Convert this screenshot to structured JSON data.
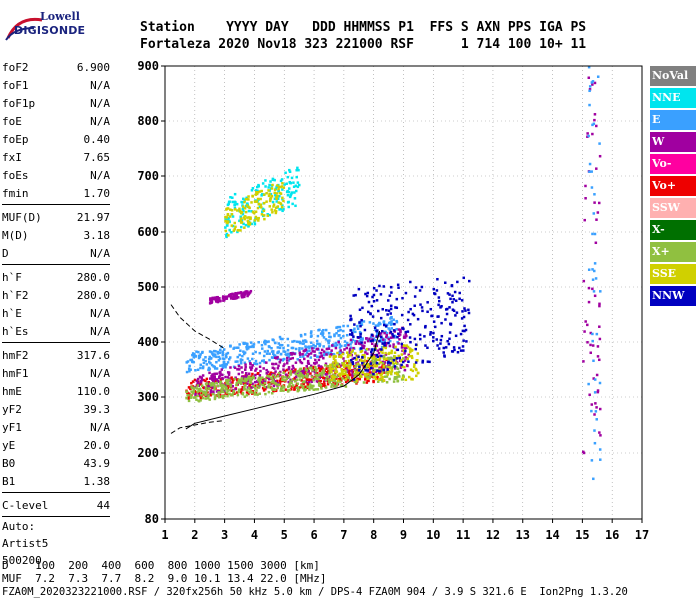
{
  "logo": {
    "line1": "Lowell",
    "line2": "DIGISONDE"
  },
  "header": {
    "labels": "Station    YYYY DAY   DDD HHMMSS P1  FFS S AXN PPS IGA PS",
    "values": "Fortaleza 2020 Nov18 323 221000 RSF      1 714 100 10+ 11"
  },
  "params": {
    "group1": [
      {
        "name": "foF2",
        "value": "6.900"
      },
      {
        "name": "foF1",
        "value": "N/A"
      },
      {
        "name": "foF1p",
        "value": "N/A"
      },
      {
        "name": "foE",
        "value": "N/A"
      },
      {
        "name": "foEp",
        "value": "0.40"
      },
      {
        "name": "fxI",
        "value": "7.65"
      },
      {
        "name": "foEs",
        "value": "N/A"
      },
      {
        "name": "fmin",
        "value": "1.70"
      }
    ],
    "group2": [
      {
        "name": "MUF(D)",
        "value": "21.97"
      },
      {
        "name": "M(D)",
        "value": "3.18"
      },
      {
        "name": "D",
        "value": "N/A"
      }
    ],
    "group3": [
      {
        "name": "h`F",
        "value": "280.0"
      },
      {
        "name": "h`F2",
        "value": "280.0"
      },
      {
        "name": "h`E",
        "value": "N/A"
      },
      {
        "name": "h`Es",
        "value": "N/A"
      }
    ],
    "group4": [
      {
        "name": "hmF2",
        "value": "317.6"
      },
      {
        "name": "hmF1",
        "value": "N/A"
      },
      {
        "name": "hmE",
        "value": "110.0"
      },
      {
        "name": "yF2",
        "value": "39.3"
      },
      {
        "name": "yF1",
        "value": "N/A"
      },
      {
        "name": "yE",
        "value": "20.0"
      },
      {
        "name": "B0",
        "value": "43.9"
      },
      {
        "name": "B1",
        "value": "1.38"
      }
    ],
    "clevel": {
      "name": "C-level",
      "value": "44"
    },
    "auto": [
      "Auto:",
      "Artist5",
      "500200"
    ]
  },
  "legend": [
    {
      "label": "NoVal",
      "color": "#808080"
    },
    {
      "label": "NNE",
      "color": "#00e5ee"
    },
    {
      "label": "E",
      "color": "#3aa0ff"
    },
    {
      "label": "W",
      "color": "#a000a0"
    },
    {
      "label": "Vo-",
      "color": "#ff00a0"
    },
    {
      "label": "Vo+",
      "color": "#ee0000"
    },
    {
      "label": "SSW",
      "color": "#ffb0b0"
    },
    {
      "label": "X-",
      "color": "#007000"
    },
    {
      "label": "X+",
      "color": "#90c040"
    },
    {
      "label": "SSE",
      "color": "#d0d000"
    },
    {
      "label": "NNW",
      "color": "#0000c0"
    }
  ],
  "footer": {
    "line1": "D    100  200  400  600  800 1000 1500 3000 [km]",
    "line2": "MUF  7.2  7.3  7.7  8.2  9.0 10.1 13.4 22.0 [MHz]",
    "line3": "FZA0M_2020323221000.RSF / 320fx256h 50 kHz 5.0 km / DPS-4 FZA0M 904 / 3.9 S 321.6 E  Ion2Png 1.3.20"
  },
  "chart_data": {
    "type": "scatter",
    "title": "",
    "xlabel": "",
    "ylabel": "",
    "xlim": [
      1,
      17
    ],
    "ylim": [
      80,
      900
    ],
    "x_ticks": [
      1,
      2,
      3,
      4,
      5,
      6,
      7,
      8,
      9,
      10,
      11,
      12,
      13,
      14,
      15,
      16,
      17
    ],
    "y_ticks": [
      80,
      200,
      300,
      400,
      500,
      600,
      700,
      800,
      900
    ],
    "grid": "dotted",
    "legend_position": "right",
    "clusters": [
      {
        "name": "Vo+",
        "x_range": [
          1.7,
          8.5
        ],
        "y_start": [
          295,
          330
        ],
        "y_end": [
          330,
          370
        ]
      },
      {
        "name": "E",
        "x_range": [
          1.7,
          8.8
        ],
        "y_start": [
          345,
          380
        ],
        "y_end": [
          390,
          450
        ]
      },
      {
        "name": "W",
        "x_range": [
          2.0,
          9.2
        ],
        "y_start": [
          300,
          340
        ],
        "y_end": [
          350,
          430
        ]
      },
      {
        "name": "X+",
        "x_range": [
          1.7,
          9.0
        ],
        "y_start": [
          290,
          320
        ],
        "y_end": [
          330,
          380
        ]
      },
      {
        "name": "SSE",
        "x_range": [
          6.5,
          9.5
        ],
        "y_start": [
          330,
          380
        ],
        "y_end": [
          330,
          400
        ]
      },
      {
        "name": "NNW",
        "x_range": [
          7.2,
          11.2
        ],
        "y_start": [
          330,
          500
        ],
        "y_end": [
          380,
          520
        ]
      },
      {
        "name": "NNE",
        "x_range": [
          3.0,
          5.5
        ],
        "y_start": [
          590,
          660
        ],
        "y_end": [
          650,
          720
        ]
      },
      {
        "name": "SSE",
        "x_range": [
          3.0,
          5.0
        ],
        "y_start": [
          590,
          640
        ],
        "y_end": [
          640,
          700
        ]
      },
      {
        "name": "W",
        "x_range": [
          2.5,
          3.9
        ],
        "y_start": [
          470,
          480
        ],
        "y_end": [
          485,
          495
        ]
      },
      {
        "name": "W",
        "x_range": [
          15.0,
          15.6
        ],
        "y_start": [
          200,
          880
        ],
        "y_end": [
          200,
          880
        ]
      },
      {
        "name": "E",
        "x_range": [
          15.2,
          15.6
        ],
        "y_start": [
          150,
          900
        ],
        "y_end": [
          150,
          900
        ]
      }
    ],
    "curves": [
      {
        "name": "virtual-height",
        "style": "solid",
        "x": [
          1.7,
          2,
          3,
          4,
          5,
          6,
          7,
          7.5,
          8.0,
          8.2
        ],
        "y": [
          243,
          253,
          266,
          279,
          292,
          305,
          320,
          340,
          380,
          420
        ]
      },
      {
        "name": "profile-upper",
        "style": "dashed",
        "x": [
          1.2,
          1.5,
          2.0,
          2.5,
          3.0
        ],
        "y": [
          468,
          445,
          420,
          405,
          388
        ]
      },
      {
        "name": "profile-lower",
        "style": "dashed",
        "x": [
          1.2,
          1.5,
          2.0,
          2.5,
          3.0
        ],
        "y": [
          235,
          245,
          250,
          255,
          258
        ]
      }
    ]
  }
}
